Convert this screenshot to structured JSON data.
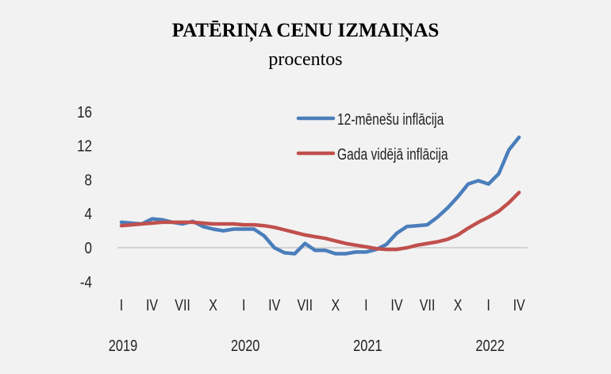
{
  "chart_data": {
    "type": "line",
    "title": "PATĒRIŅA CENU IZMAIŅAS",
    "subtitle": "procentos",
    "ylim": [
      -4,
      16
    ],
    "yticks": [
      -4,
      0,
      4,
      8,
      12,
      16
    ],
    "xtick_labels": [
      "I",
      "IV",
      "VII",
      "X",
      "I",
      "IV",
      "VII",
      "X",
      "I",
      "IV",
      "VII",
      "X",
      "I",
      "IV"
    ],
    "year_labels": [
      "2019",
      "2020",
      "2021",
      "2022"
    ],
    "x_start": "2019-01",
    "x_end": "2022-04",
    "grid": false,
    "legend_position": "top-right",
    "series": [
      {
        "name": "12-mēnešu inflācija",
        "color": "#4a7ebb",
        "values": [
          3.0,
          2.9,
          2.8,
          3.4,
          3.3,
          3.0,
          2.8,
          3.1,
          2.5,
          2.2,
          2.0,
          2.2,
          2.2,
          2.2,
          1.4,
          0.0,
          -0.6,
          -0.7,
          0.5,
          -0.3,
          -0.3,
          -0.7,
          -0.7,
          -0.5,
          -0.5,
          -0.2,
          0.4,
          1.7,
          2.5,
          2.6,
          2.7,
          3.6,
          4.7,
          6.0,
          7.5,
          7.9,
          7.5,
          8.7,
          11.5,
          13.0
        ]
      },
      {
        "name": "Gada vidējā inflācija",
        "color": "#c0504d",
        "values": [
          2.6,
          2.7,
          2.8,
          2.9,
          3.0,
          3.0,
          3.0,
          3.0,
          2.9,
          2.8,
          2.8,
          2.8,
          2.7,
          2.7,
          2.6,
          2.4,
          2.1,
          1.8,
          1.5,
          1.3,
          1.1,
          0.8,
          0.5,
          0.3,
          0.1,
          -0.1,
          -0.2,
          -0.2,
          0.0,
          0.3,
          0.5,
          0.7,
          1.0,
          1.5,
          2.3,
          3.0,
          3.6,
          4.3,
          5.3,
          6.5
        ]
      }
    ]
  }
}
